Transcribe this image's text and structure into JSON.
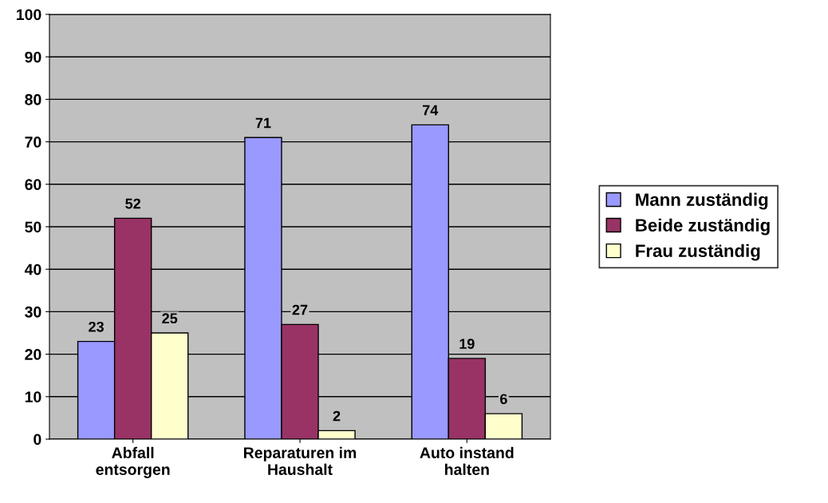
{
  "chart_data": {
    "type": "bar",
    "categories": [
      "Abfall\nentsorgen",
      "Reparaturen im\nHaushalt",
      "Auto instand\nhalten"
    ],
    "series": [
      {
        "name": "Mann zuständig",
        "color": "#9999ff",
        "values": [
          23,
          71,
          74
        ]
      },
      {
        "name": "Beide zuständig",
        "color": "#993366",
        "values": [
          52,
          27,
          19
        ]
      },
      {
        "name": "Frau zuständig",
        "color": "#ffffcc",
        "values": [
          25,
          2,
          6
        ]
      }
    ],
    "ylim": [
      0,
      100
    ],
    "yticks": [
      0,
      10,
      20,
      30,
      40,
      50,
      60,
      70,
      80,
      90,
      100
    ],
    "grid": "y",
    "legend": "right",
    "data_labels": true
  }
}
